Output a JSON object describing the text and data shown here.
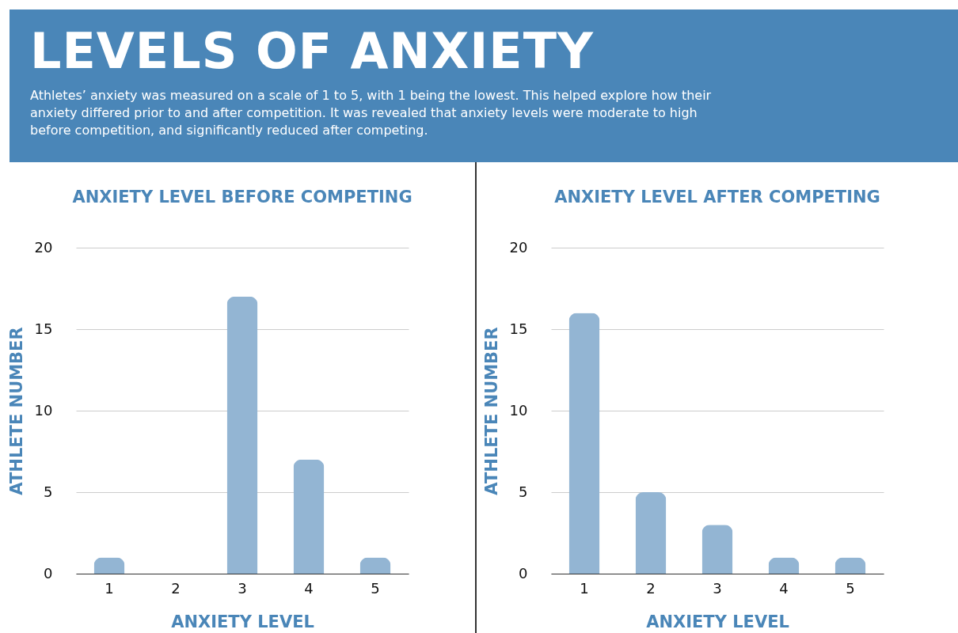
{
  "chart_data": [
    {
      "type": "other",
      "title": "LEVELS OF ANXIETY",
      "subtitle": "Athletes’ anxiety was measured on a scale of 1 to 5, with 1 being the lowest. This helped explore how their anxiety differed prior to and after competition. It was revealed that anxiety levels were moderate to high before competition, and significantly reduced after competing."
    },
    {
      "type": "bar",
      "title": "ANXIETY LEVEL BEFORE COMPETING",
      "xlabel": "ANXIETY LEVEL",
      "ylabel": "ATHLETE NUMBER",
      "categories": [
        "1",
        "2",
        "3",
        "4",
        "5"
      ],
      "values": [
        1,
        0,
        17,
        7,
        1
      ],
      "color": "#93b5d3",
      "ylim": [
        0,
        20
      ],
      "yticks": [
        0,
        5,
        10,
        15,
        20
      ],
      "grid": "y"
    },
    {
      "type": "bar",
      "title": "ANXIETY LEVEL AFTER COMPETING",
      "xlabel": "ANXIETY LEVEL",
      "ylabel": "ATHLETE NUMBER",
      "categories": [
        "1",
        "2",
        "3",
        "4",
        "5"
      ],
      "values": [
        16,
        5,
        3,
        1,
        1
      ],
      "color": "#93b5d3",
      "ylim": [
        0,
        20
      ],
      "yticks": [
        0,
        5,
        10,
        15,
        20
      ],
      "grid": "y"
    }
  ]
}
